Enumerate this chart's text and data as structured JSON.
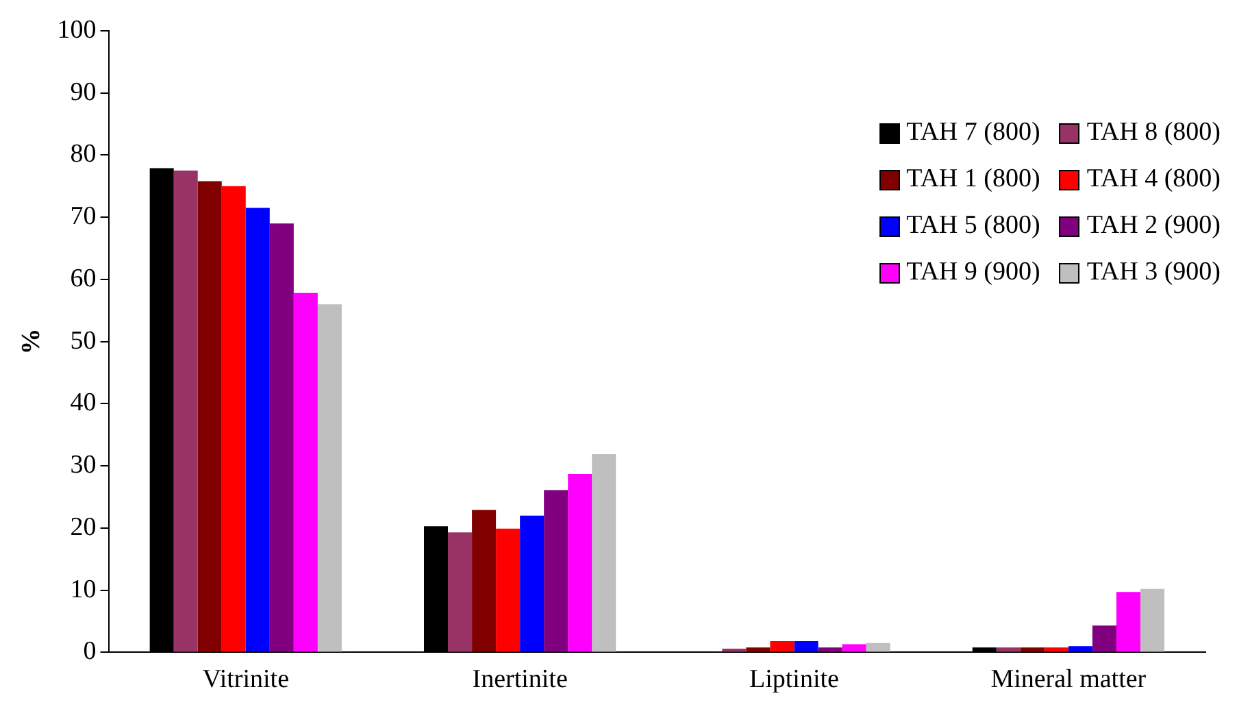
{
  "chart_data": {
    "type": "bar",
    "ylabel": "%",
    "categories": [
      "Vitrinite",
      "Inertinite",
      "Liptinite",
      "Mineral matter"
    ],
    "series": [
      {
        "name": "TAH 7 (800)",
        "color": "#000000",
        "values": [
          77.9,
          20.3,
          0,
          0.8
        ]
      },
      {
        "name": "TAH 8 (800)",
        "color": "#993366",
        "values": [
          77.5,
          19.3,
          0.6,
          0.8
        ]
      },
      {
        "name": "TAH 1 (800)",
        "color": "#800000",
        "values": [
          75.8,
          22.9,
          0.8,
          0.8
        ]
      },
      {
        "name": "TAH 4 (800)",
        "color": "#ff0000",
        "values": [
          75,
          19.9,
          1.8,
          0.8
        ]
      },
      {
        "name": "TAH 5 (800)",
        "color": "#0000ff",
        "values": [
          71.5,
          22,
          1.8,
          1
        ]
      },
      {
        "name": "TAH 2 (900)",
        "color": "#800080",
        "values": [
          69,
          26.1,
          0.8,
          4.3
        ]
      },
      {
        "name": "TAH 9 (900)",
        "color": "#ff00ff",
        "values": [
          57.8,
          28.7,
          1.3,
          9.7
        ]
      },
      {
        "name": "TAH 3 (900)",
        "color": "#bfbfbf",
        "values": [
          56,
          31.9,
          1.5,
          10.2
        ]
      }
    ],
    "ylim": [
      0,
      100
    ],
    "yticks": [
      0,
      10,
      20,
      30,
      40,
      50,
      60,
      70,
      80,
      90,
      100
    ],
    "grid": false,
    "legend": "top right"
  }
}
